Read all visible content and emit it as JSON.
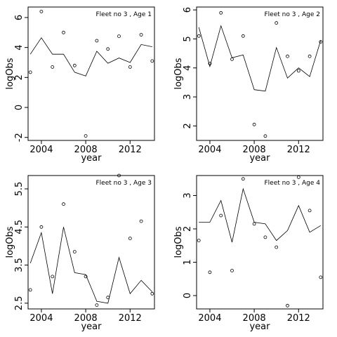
{
  "figure": {
    "x_label": "year",
    "y_label": "logObs"
  },
  "chart_data": [
    {
      "type": "line",
      "title": "Fleet no 3 , Age 1",
      "xlabel": "year",
      "ylabel": "logObs",
      "xlim": [
        2002.8,
        2014.2
      ],
      "ylim": [
        -2.2,
        6.7
      ],
      "xticks": [
        2004,
        2008,
        2012
      ],
      "yticks": [
        -2,
        0,
        2,
        4,
        6
      ],
      "x": [
        2003,
        2004,
        2005,
        2006,
        2007,
        2008,
        2009,
        2010,
        2011,
        2012,
        2013,
        2014
      ],
      "series": [
        {
          "kind": "line",
          "values": [
            3.55,
            4.65,
            3.55,
            3.55,
            2.35,
            2.1,
            3.75,
            2.95,
            3.3,
            3.0,
            4.2,
            4.05
          ]
        },
        {
          "kind": "points",
          "values": [
            2.35,
            6.4,
            2.7,
            5.0,
            2.8,
            -1.9,
            4.45,
            3.9,
            4.75,
            2.7,
            4.85,
            3.1
          ]
        }
      ],
      "grid": false,
      "legend": "none"
    },
    {
      "type": "line",
      "title": "Fleet no 3 , Age 2",
      "xlabel": "year",
      "ylabel": "logObs",
      "xlim": [
        2002.8,
        2014.2
      ],
      "ylim": [
        1.5,
        6.1
      ],
      "xticks": [
        2004,
        2008,
        2012
      ],
      "yticks": [
        2,
        3,
        4,
        5,
        6
      ],
      "x": [
        2003,
        2004,
        2005,
        2006,
        2007,
        2008,
        2009,
        2010,
        2011,
        2012,
        2013,
        2014
      ],
      "series": [
        {
          "kind": "line",
          "values": [
            5.4,
            4.05,
            5.45,
            4.35,
            4.45,
            3.25,
            3.2,
            4.7,
            3.65,
            4.0,
            3.7,
            4.95
          ]
        },
        {
          "kind": "points",
          "values": [
            5.1,
            4.15,
            5.9,
            4.3,
            5.1,
            2.05,
            1.65,
            5.55,
            4.4,
            3.9,
            4.4,
            4.9
          ]
        }
      ],
      "grid": false,
      "legend": "none"
    },
    {
      "type": "line",
      "title": "Fleet no 3 , Age 3",
      "xlabel": "year",
      "ylabel": "logObs",
      "xlim": [
        2002.8,
        2014.2
      ],
      "ylim": [
        2.35,
        5.85
      ],
      "xticks": [
        2004,
        2008,
        2012
      ],
      "yticks": [
        2.5,
        3.5,
        4.5,
        5.5
      ],
      "x": [
        2003,
        2004,
        2005,
        2006,
        2007,
        2008,
        2009,
        2010,
        2011,
        2012,
        2013,
        2014
      ],
      "series": [
        {
          "kind": "line",
          "values": [
            3.55,
            4.35,
            2.75,
            4.5,
            3.3,
            3.25,
            2.55,
            2.5,
            3.7,
            2.75,
            3.1,
            2.8
          ]
        },
        {
          "kind": "points",
          "values": [
            2.85,
            4.5,
            3.2,
            5.1,
            3.85,
            3.2,
            2.45,
            2.65,
            5.85,
            4.2,
            4.65,
            2.75
          ]
        }
      ],
      "grid": false,
      "legend": "none"
    },
    {
      "type": "line",
      "title": "Fleet no 3 , Age 4",
      "xlabel": "year",
      "ylabel": "logObs",
      "xlim": [
        2002.8,
        2014.2
      ],
      "ylim": [
        -0.4,
        3.6
      ],
      "xticks": [
        2004,
        2008,
        2012
      ],
      "yticks": [
        0,
        1,
        2,
        3
      ],
      "x": [
        2003,
        2004,
        2005,
        2006,
        2007,
        2008,
        2009,
        2010,
        2011,
        2012,
        2013,
        2014
      ],
      "series": [
        {
          "kind": "line",
          "values": [
            2.2,
            2.2,
            2.85,
            1.6,
            3.2,
            2.2,
            2.15,
            1.65,
            1.95,
            2.7,
            1.9,
            2.1
          ]
        },
        {
          "kind": "points",
          "values": [
            1.65,
            0.7,
            2.4,
            0.75,
            3.5,
            2.15,
            1.75,
            1.45,
            -0.3,
            3.55,
            2.55,
            0.55
          ]
        }
      ],
      "grid": false,
      "legend": "none"
    }
  ]
}
